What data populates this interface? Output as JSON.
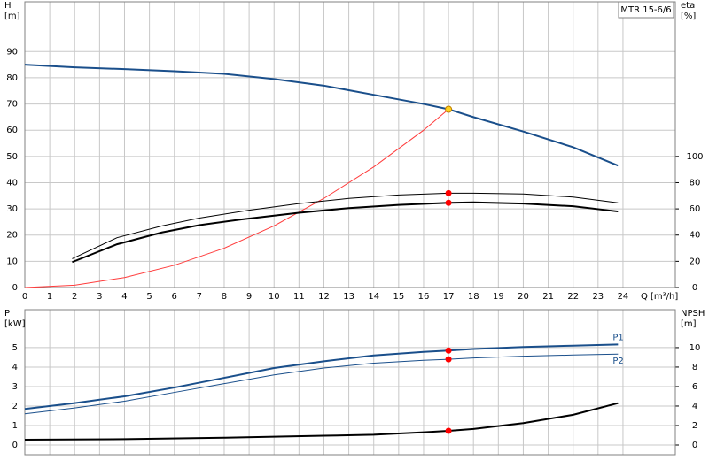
{
  "chart_data": [
    {
      "type": "line",
      "y_label": [
        "H",
        "[m]"
      ],
      "y2_label": [
        "eta",
        "[%]"
      ],
      "x_label": "Q [m³/h]",
      "annotation": "MTR 15-6/6",
      "xlim": [
        0,
        26.1
      ],
      "xticks": [
        0,
        1,
        2,
        3,
        4,
        5,
        6,
        7,
        8,
        9,
        10,
        11,
        12,
        13,
        14,
        15,
        16,
        17,
        18,
        19,
        20,
        21,
        22,
        23,
        24
      ],
      "ylim": [
        0,
        109
      ],
      "yticks": [
        0,
        10,
        20,
        30,
        40,
        50,
        60,
        70,
        80,
        90
      ],
      "y2lim": [
        0,
        218
      ],
      "y2ticks": [
        0,
        20,
        40,
        60,
        80,
        100
      ],
      "grid": true,
      "series": [
        {
          "color": "#1a4f8b",
          "width": 2,
          "x": [
            0,
            2,
            4,
            6,
            8,
            10,
            12,
            14,
            16,
            17,
            18,
            20,
            22,
            23.8
          ],
          "values": [
            85,
            84,
            83.3,
            82.5,
            81.5,
            79.5,
            77,
            73.5,
            70,
            68,
            65,
            59.5,
            53.5,
            46.5
          ]
        },
        {
          "color": "#ff3b3b",
          "width": 1,
          "x": [
            0,
            2,
            4,
            6,
            8,
            10,
            12,
            14,
            16,
            17
          ],
          "values": [
            0,
            0.9,
            3.8,
            8.5,
            15,
            23.5,
            34,
            46,
            60,
            68
          ]
        },
        {
          "color": "#000000",
          "width": 1,
          "axis": "y2",
          "x": [
            1.9,
            3.7,
            5.5,
            7,
            9,
            11,
            13,
            15,
            17,
            18,
            20,
            22,
            23.8
          ],
          "values": [
            22,
            38,
            47,
            53,
            59,
            64,
            68,
            70.6,
            72,
            72,
            71.4,
            69,
            64.6
          ]
        },
        {
          "color": "#000000",
          "width": 2,
          "axis": "y2",
          "x": [
            1.9,
            3.7,
            5.5,
            7,
            8.7,
            11,
            13,
            15,
            17,
            18,
            20,
            22,
            23.8
          ],
          "values": [
            19.4,
            33,
            42,
            47.6,
            52,
            57,
            60.6,
            63,
            64.6,
            65,
            64,
            62,
            58
          ]
        }
      ],
      "points": [
        {
          "x": 17,
          "y": 68,
          "color": "#ffd21f"
        },
        {
          "x": 17,
          "y": 72,
          "color": "#ff0000",
          "axis": "y2"
        },
        {
          "x": 17,
          "y": 64.6,
          "color": "#ff0000",
          "axis": "y2"
        }
      ]
    },
    {
      "type": "line",
      "y_label": [
        "P",
        "[kW]"
      ],
      "y2_label": [
        "NPSH",
        "[m]"
      ],
      "xlim": [
        0,
        26.1
      ],
      "ylim": [
        -0.5,
        6.95
      ],
      "yticks": [
        0,
        1,
        2,
        3,
        4,
        5
      ],
      "y2lim": [
        -1,
        13.9
      ],
      "y2ticks": [
        0,
        2,
        4,
        6,
        8,
        10
      ],
      "grid": true,
      "series": [
        {
          "name": "P1",
          "color": "#1a4f8b",
          "width": 2,
          "x": [
            0,
            2,
            4,
            6,
            8,
            10,
            12,
            14,
            16,
            17,
            18,
            20,
            22,
            23.8
          ],
          "values": [
            1.85,
            2.15,
            2.5,
            2.95,
            3.45,
            3.95,
            4.3,
            4.6,
            4.78,
            4.85,
            4.93,
            5.03,
            5.1,
            5.16
          ]
        },
        {
          "name": "P2",
          "color": "#1a4f8b",
          "width": 1,
          "x": [
            0,
            2,
            4,
            6,
            8,
            10,
            12,
            14,
            16,
            17,
            18,
            20,
            22,
            23.8
          ],
          "values": [
            1.6,
            1.9,
            2.25,
            2.7,
            3.15,
            3.6,
            3.95,
            4.2,
            4.35,
            4.4,
            4.47,
            4.56,
            4.62,
            4.67
          ]
        },
        {
          "color": "#000000",
          "width": 2,
          "axis": "y2",
          "x": [
            0,
            4,
            8,
            10,
            12,
            14,
            16,
            17,
            18,
            20,
            22,
            23.8
          ],
          "values": [
            0.55,
            0.6,
            0.75,
            0.85,
            0.95,
            1.05,
            1.3,
            1.45,
            1.65,
            2.25,
            3.1,
            4.3
          ]
        }
      ],
      "points": [
        {
          "x": 17,
          "y": 4.85,
          "color": "#ff0000"
        },
        {
          "x": 17,
          "y": 4.4,
          "color": "#ff0000"
        },
        {
          "x": 17,
          "y": 1.45,
          "color": "#ff0000",
          "axis": "y2"
        }
      ]
    }
  ]
}
